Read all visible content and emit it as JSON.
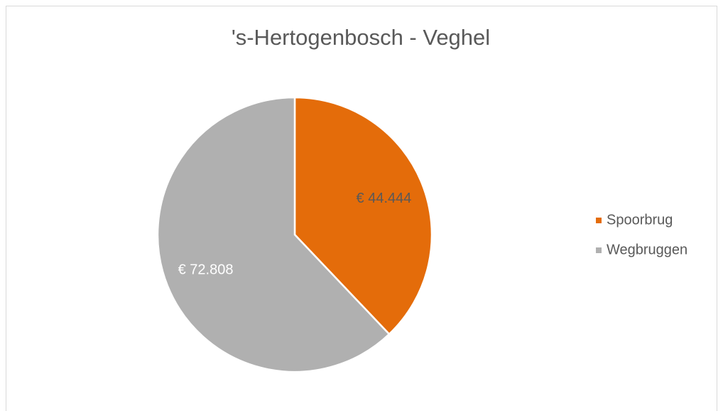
{
  "chart_data": {
    "type": "pie",
    "title": "'s-Hertogenbosch - Veghel",
    "categories": [
      "Spoorbrug",
      "Wegbruggen"
    ],
    "values": [
      44444,
      72808
    ],
    "value_labels": [
      "€ 44.444",
      "€ 72.808"
    ],
    "colors": [
      "#e46c0a",
      "#b0b0b0"
    ],
    "legend": "right"
  }
}
